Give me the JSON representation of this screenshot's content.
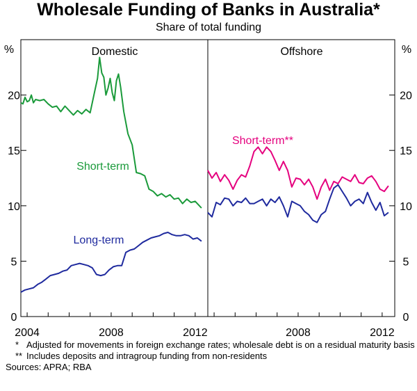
{
  "title": "Wholesale Funding of Banks in Australia*",
  "subtitle": "Share of total funding",
  "notes": [
    {
      "mark": "*",
      "text": "Adjusted for movements in foreign exchange rates; wholesale debt is on a residual maturity basis"
    },
    {
      "mark": "**",
      "text": "Includes deposits and intragroup funding from non-residents"
    }
  ],
  "sources": "Sources: APRA; RBA",
  "colors": {
    "short_term": "#1a9a3a",
    "long_term": "#1f2a9e",
    "offshore_short_term": "#e5007e",
    "offshore_long_term": "#1f2a9e"
  },
  "chart_data": [
    {
      "type": "line",
      "panel": "Domestic",
      "ylabel_left": "%",
      "ylabel_right": "%",
      "ylim": [
        0,
        25
      ],
      "yticks": [
        0,
        5,
        10,
        15,
        20
      ],
      "xlim": [
        2003.7,
        2012.6
      ],
      "xticks": [
        2004,
        2008,
        2012
      ],
      "series": [
        {
          "name": "Short-term",
          "x": [
            2003.7,
            2003.8,
            2003.9,
            2004.0,
            2004.1,
            2004.2,
            2004.3,
            2004.4,
            2004.6,
            2004.8,
            2005.0,
            2005.2,
            2005.4,
            2005.6,
            2005.8,
            2006.0,
            2006.2,
            2006.4,
            2006.6,
            2006.8,
            2007.0,
            2007.2,
            2007.35,
            2007.45,
            2007.55,
            2007.65,
            2007.75,
            2007.85,
            2007.95,
            2008.05,
            2008.15,
            2008.25,
            2008.35,
            2008.45,
            2008.6,
            2008.8,
            2009.0,
            2009.2,
            2009.4,
            2009.6,
            2009.8,
            2010.0,
            2010.2,
            2010.4,
            2010.6,
            2010.8,
            2011.0,
            2011.2,
            2011.4,
            2011.6,
            2011.8,
            2012.0,
            2012.15,
            2012.3
          ],
          "values": [
            19.3,
            19.2,
            19.8,
            19.4,
            19.5,
            20.0,
            19.3,
            19.6,
            19.5,
            19.6,
            19.2,
            18.9,
            19.0,
            18.5,
            19.0,
            18.6,
            18.2,
            18.6,
            18.3,
            18.7,
            18.4,
            20.2,
            21.5,
            23.4,
            22.0,
            21.6,
            20.0,
            20.6,
            21.5,
            20.2,
            19.5,
            21.3,
            21.9,
            20.7,
            18.5,
            16.5,
            15.5,
            13.0,
            12.9,
            12.7,
            11.5,
            11.3,
            10.9,
            11.1,
            10.8,
            11.0,
            10.6,
            10.7,
            10.2,
            10.6,
            10.3,
            10.4,
            10.1,
            9.8
          ]
        },
        {
          "name": "Long-term",
          "x": [
            2003.7,
            2003.9,
            2004.1,
            2004.3,
            2004.5,
            2004.7,
            2004.9,
            2005.1,
            2005.3,
            2005.5,
            2005.7,
            2005.9,
            2006.1,
            2006.3,
            2006.5,
            2006.7,
            2006.9,
            2007.1,
            2007.3,
            2007.5,
            2007.7,
            2007.9,
            2008.1,
            2008.3,
            2008.5,
            2008.7,
            2008.9,
            2009.1,
            2009.3,
            2009.5,
            2009.7,
            2009.9,
            2010.1,
            2010.3,
            2010.5,
            2010.7,
            2010.9,
            2011.1,
            2011.3,
            2011.5,
            2011.7,
            2011.9,
            2012.1,
            2012.3
          ],
          "values": [
            2.2,
            2.4,
            2.5,
            2.6,
            2.9,
            3.1,
            3.4,
            3.7,
            3.8,
            3.9,
            4.1,
            4.2,
            4.6,
            4.7,
            4.8,
            4.7,
            4.6,
            4.4,
            3.8,
            3.7,
            3.8,
            4.2,
            4.5,
            4.6,
            4.6,
            5.8,
            6.0,
            6.1,
            6.4,
            6.7,
            6.9,
            7.1,
            7.2,
            7.3,
            7.5,
            7.6,
            7.4,
            7.3,
            7.3,
            7.4,
            7.3,
            7.0,
            7.1,
            6.8
          ]
        }
      ]
    },
    {
      "type": "line",
      "panel": "Offshore",
      "ylabel_right": "%",
      "ylim": [
        0,
        25
      ],
      "xlim": [
        2003.7,
        2012.6
      ],
      "xticks": [
        2008,
        2012
      ],
      "series": [
        {
          "name": "Short-term**",
          "x": [
            2003.7,
            2003.9,
            2004.1,
            2004.3,
            2004.5,
            2004.7,
            2004.9,
            2005.1,
            2005.3,
            2005.5,
            2005.7,
            2005.9,
            2006.1,
            2006.3,
            2006.5,
            2006.7,
            2006.9,
            2007.1,
            2007.3,
            2007.5,
            2007.7,
            2007.9,
            2008.1,
            2008.3,
            2008.5,
            2008.7,
            2008.9,
            2009.1,
            2009.3,
            2009.5,
            2009.7,
            2009.9,
            2010.1,
            2010.3,
            2010.5,
            2010.7,
            2010.9,
            2011.1,
            2011.3,
            2011.5,
            2011.7,
            2011.9,
            2012.1,
            2012.3
          ],
          "values": [
            13.2,
            12.5,
            13.0,
            12.2,
            12.8,
            12.3,
            11.5,
            12.3,
            12.8,
            12.6,
            13.6,
            14.9,
            15.3,
            14.7,
            15.3,
            14.9,
            14.1,
            13.2,
            14.0,
            13.2,
            11.7,
            12.5,
            12.4,
            11.9,
            12.4,
            11.7,
            10.6,
            11.7,
            12.4,
            11.4,
            12.2,
            12.0,
            12.6,
            12.4,
            12.2,
            12.8,
            12.1,
            12.0,
            12.5,
            12.7,
            12.2,
            11.5,
            11.3,
            11.8
          ]
        },
        {
          "name": "Long-term",
          "x": [
            2003.7,
            2003.9,
            2004.1,
            2004.3,
            2004.5,
            2004.7,
            2004.9,
            2005.1,
            2005.3,
            2005.5,
            2005.7,
            2005.9,
            2006.1,
            2006.3,
            2006.5,
            2006.7,
            2006.9,
            2007.1,
            2007.3,
            2007.5,
            2007.7,
            2007.9,
            2008.1,
            2008.3,
            2008.5,
            2008.7,
            2008.9,
            2009.1,
            2009.3,
            2009.5,
            2009.7,
            2009.9,
            2010.1,
            2010.3,
            2010.5,
            2010.7,
            2010.9,
            2011.1,
            2011.3,
            2011.5,
            2011.7,
            2011.9,
            2012.1,
            2012.3
          ],
          "values": [
            9.4,
            9.0,
            10.3,
            10.1,
            10.7,
            10.6,
            10.0,
            10.4,
            10.3,
            10.7,
            10.2,
            10.2,
            10.4,
            10.6,
            10.0,
            10.6,
            10.3,
            10.8,
            10.0,
            9.0,
            10.4,
            10.2,
            10.0,
            9.5,
            9.2,
            8.7,
            8.5,
            9.2,
            9.5,
            10.6,
            11.6,
            11.9,
            11.3,
            10.7,
            10.0,
            10.4,
            10.6,
            10.2,
            11.2,
            10.3,
            9.6,
            10.3,
            9.1,
            9.4
          ]
        }
      ]
    }
  ]
}
